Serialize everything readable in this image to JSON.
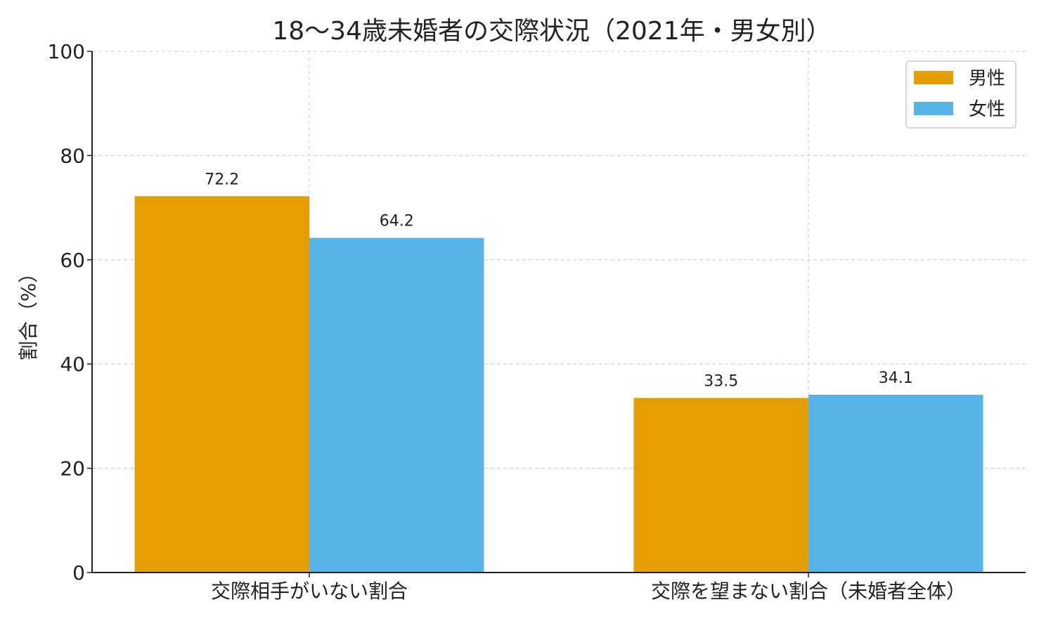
{
  "chart_data": {
    "type": "bar",
    "title": "18〜34歳未婚者の交際状況（2021年・男女別）",
    "xlabel": "",
    "ylabel": "割合（%）",
    "ylim": [
      0,
      100
    ],
    "yticks": [
      0,
      20,
      40,
      60,
      80,
      100
    ],
    "grid": true,
    "legend_position": "top-right",
    "categories": [
      "交際相手がいない割合",
      "交際を望まない割合（未婚者全体）"
    ],
    "series": [
      {
        "name": "男性",
        "color": "#E69F00",
        "values": [
          72.2,
          33.5
        ]
      },
      {
        "name": "女性",
        "color": "#56B4E9",
        "values": [
          64.2,
          34.1
        ]
      }
    ]
  }
}
